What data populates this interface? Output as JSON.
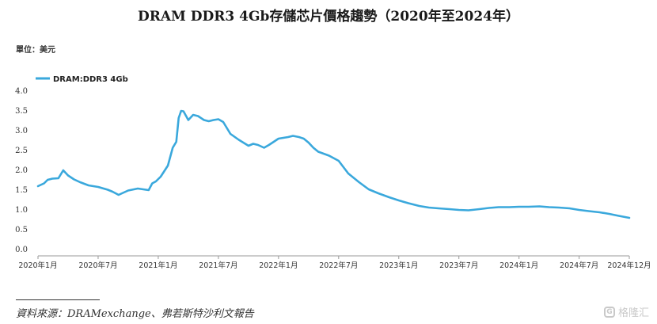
{
  "title": "DRAM DDR3 4Gb存儲芯片價格趨勢（2020年至2024年）",
  "unit_label": "單位：美元",
  "source_note": "資料來源：DRAMexchange、弗若斯特沙利文報告",
  "watermark": {
    "text": "格隆汇",
    "icon": "G"
  },
  "colors": {
    "line": "#3aa8dc",
    "axis": "#999999",
    "text": "#1a1a1a"
  },
  "chart_data": {
    "type": "line",
    "title": "DRAM DDR3 4Gb存儲芯片價格趨勢（2020年至2024年）",
    "ylabel": "單位：美元",
    "ylim": [
      0.0,
      4.0
    ],
    "y_ticks": [
      0.0,
      0.5,
      1.0,
      1.5,
      2.0,
      2.5,
      3.0,
      3.5,
      4.0
    ],
    "y_tick_labels": [
      "0.0",
      "0.5",
      "1.0",
      "1.5",
      "2.0",
      "2.5",
      "3.0",
      "3.5",
      "4.0"
    ],
    "x_ticks": [
      2020.0,
      2020.5,
      2021.0,
      2021.5,
      2022.0,
      2022.5,
      2023.0,
      2023.5,
      2024.0,
      2024.5,
      2024.917
    ],
    "x_tick_labels": [
      "2020年1月",
      "2020年7月",
      "2021年1月",
      "2021年7月",
      "2022年1月",
      "2022年7月",
      "2023年1月",
      "2023年7月",
      "2024年1月",
      "2024年7月",
      "2024年12月"
    ],
    "grid": false,
    "legend_position": "top-left",
    "series": [
      {
        "name": "DRAM:DDR3 4Gb",
        "x": [
          2020.0,
          2020.05,
          2020.08,
          2020.12,
          2020.17,
          2020.21,
          2020.25,
          2020.3,
          2020.35,
          2020.42,
          2020.5,
          2020.58,
          2020.62,
          2020.67,
          2020.75,
          2020.83,
          2020.92,
          2020.95,
          2020.98,
          2021.02,
          2021.08,
          2021.12,
          2021.15,
          2021.17,
          2021.19,
          2021.21,
          2021.25,
          2021.29,
          2021.33,
          2021.38,
          2021.42,
          2021.46,
          2021.5,
          2021.54,
          2021.6,
          2021.67,
          2021.75,
          2021.79,
          2021.83,
          2021.88,
          2021.92,
          2021.96,
          2022.0,
          2022.04,
          2022.08,
          2022.12,
          2022.17,
          2022.21,
          2022.25,
          2022.29,
          2022.33,
          2022.42,
          2022.5,
          2022.58,
          2022.67,
          2022.75,
          2022.83,
          2022.92,
          2023.0,
          2023.08,
          2023.17,
          2023.25,
          2023.33,
          2023.42,
          2023.5,
          2023.58,
          2023.67,
          2023.75,
          2023.83,
          2023.92,
          2024.0,
          2024.08,
          2024.17,
          2024.25,
          2024.33,
          2024.42,
          2024.5,
          2024.58,
          2024.67,
          2024.75,
          2024.83,
          2024.917
        ],
        "values": [
          1.58,
          1.65,
          1.74,
          1.77,
          1.78,
          1.98,
          1.85,
          1.75,
          1.68,
          1.6,
          1.56,
          1.49,
          1.44,
          1.36,
          1.47,
          1.52,
          1.48,
          1.65,
          1.7,
          1.82,
          2.1,
          2.55,
          2.7,
          3.3,
          3.48,
          3.47,
          3.25,
          3.38,
          3.35,
          3.25,
          3.22,
          3.25,
          3.27,
          3.2,
          2.9,
          2.75,
          2.6,
          2.65,
          2.62,
          2.55,
          2.62,
          2.7,
          2.78,
          2.8,
          2.82,
          2.85,
          2.82,
          2.78,
          2.68,
          2.55,
          2.45,
          2.35,
          2.22,
          1.9,
          1.68,
          1.5,
          1.4,
          1.3,
          1.22,
          1.15,
          1.08,
          1.04,
          1.02,
          1.0,
          0.98,
          0.97,
          1.0,
          1.03,
          1.05,
          1.05,
          1.06,
          1.06,
          1.07,
          1.05,
          1.04,
          1.02,
          0.98,
          0.95,
          0.92,
          0.88,
          0.83,
          0.78
        ]
      }
    ]
  }
}
